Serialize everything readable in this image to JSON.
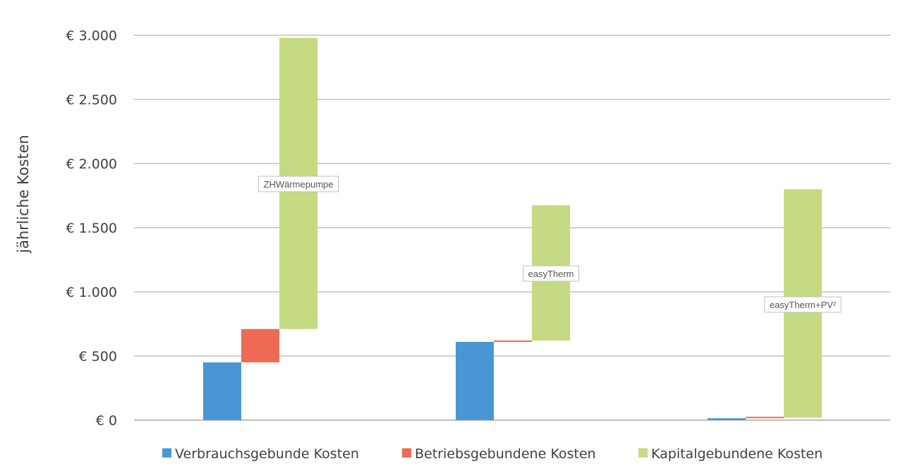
{
  "chart_data": {
    "type": "bar",
    "subtype": "waterfall",
    "ylabel": "jährliche Kosten",
    "ylim": [
      0,
      3000
    ],
    "yticks": [
      0,
      500,
      1000,
      1500,
      2000,
      2500,
      3000
    ],
    "ytick_labels": [
      "€ 0",
      "€ 500",
      "€ 1.000",
      "€ 1.500",
      "€ 2.000",
      "€ 2.500",
      "€ 3.000"
    ],
    "grid": true,
    "legend_position": "bottom",
    "categories": [
      "ZHWärmepumpe",
      "easyTherm",
      "easyTherm+PV²"
    ],
    "series": [
      {
        "name": "Verbrauchsgebunde Kosten",
        "color": "#4a96d4",
        "values": [
          450,
          610,
          15
        ]
      },
      {
        "name": "Betriebsgebundene Kosten",
        "color": "#ee6a55",
        "values": [
          260,
          10,
          5
        ]
      },
      {
        "name": "Kapitalgebundene Kosten",
        "color": "#c5da82",
        "values": [
          2270,
          1055,
          1780
        ]
      }
    ]
  }
}
